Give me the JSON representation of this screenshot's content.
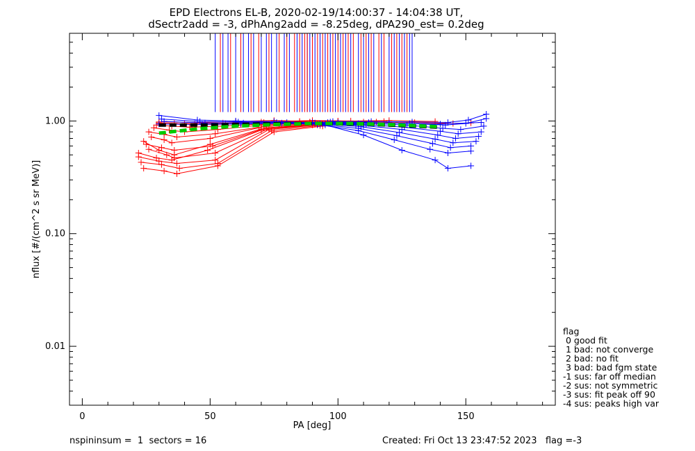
{
  "chart_data": {
    "type": "line",
    "title": "EPD Electrons EL-B, 2020-02-19/14:00:37 - 14:04:38 UT,",
    "subtitle": "dSectr2add = -3, dPhAng2add = -8.25deg, dPA290_est=   0.2deg",
    "xlabel": "PA [deg]",
    "ylabel": "nflux [#/(cm^2 s sr MeV)]",
    "xlim": [
      -5,
      185
    ],
    "ylim": [
      0.003,
      6
    ],
    "yscale": "log",
    "x_ticks": [
      "0",
      "50",
      "100",
      "150"
    ],
    "x_tick_values": [
      0,
      50,
      100,
      150
    ],
    "y_ticks": [
      "0.01",
      "0.10",
      "1.00"
    ],
    "y_tick_values": [
      0.01,
      0.1,
      1.0
    ],
    "grid": false,
    "legend_placement": "bottom-right",
    "series": [
      {
        "color": "#ff0000",
        "marker": "+",
        "note": "red traces (one sector direction)",
        "traces": [
          {
            "x": [
              22,
              30,
              37,
              52,
              73,
              92
            ],
            "y": [
              0.48,
              0.44,
              0.42,
              0.45,
              0.84,
              0.92
            ]
          },
          {
            "x": [
              23,
              31,
              38,
              53,
              74,
              93
            ],
            "y": [
              0.43,
              0.41,
              0.38,
              0.42,
              0.82,
              0.91
            ]
          },
          {
            "x": [
              24,
              32,
              37,
              53,
              75,
              94
            ],
            "y": [
              0.38,
              0.36,
              0.34,
              0.4,
              0.8,
              0.9
            ]
          },
          {
            "x": [
              26,
              33,
              36,
              52,
              73,
              92
            ],
            "y": [
              0.56,
              0.5,
              0.47,
              0.52,
              0.86,
              0.93
            ]
          },
          {
            "x": [
              25,
              31,
              36,
              51,
              72,
              91
            ],
            "y": [
              0.62,
              0.58,
              0.55,
              0.6,
              0.87,
              0.94
            ]
          },
          {
            "x": [
              27,
              32,
              35,
              50,
              71,
              90
            ],
            "y": [
              0.72,
              0.68,
              0.64,
              0.7,
              0.89,
              0.95
            ]
          },
          {
            "x": [
              26,
              32,
              37,
              52,
              72,
              91
            ],
            "y": [
              0.8,
              0.76,
              0.72,
              0.77,
              0.9,
              0.95
            ]
          },
          {
            "x": [
              28,
              34,
              40,
              53,
              70,
              90
            ],
            "y": [
              0.87,
              0.83,
              0.8,
              0.84,
              0.92,
              0.96
            ]
          },
          {
            "x": [
              29,
              35,
              42,
              55,
              70,
              89
            ],
            "y": [
              0.92,
              0.9,
              0.88,
              0.9,
              0.94,
              0.97
            ]
          },
          {
            "x": [
              30,
              36,
              44,
              56,
              71,
              89
            ],
            "y": [
              0.96,
              0.95,
              0.93,
              0.95,
              0.97,
              0.98
            ]
          },
          {
            "x": [
              24,
              30,
              36,
              50,
              70,
              90
            ],
            "y": [
              0.66,
              0.55,
              0.5,
              0.62,
              0.85,
              0.93
            ]
          },
          {
            "x": [
              22,
              29,
              35,
              49,
              70,
              90
            ],
            "y": [
              0.52,
              0.47,
              0.45,
              0.55,
              0.83,
              0.92
            ]
          },
          {
            "x": [
              30,
              45,
              60,
              75,
              90,
              110
            ],
            "y": [
              0.98,
              0.97,
              0.99,
              1.01,
              0.99,
              0.98
            ]
          },
          {
            "x": [
              40,
              55,
              70,
              85,
              100,
              118
            ],
            "y": [
              0.95,
              0.96,
              0.98,
              0.99,
              1.0,
              0.99
            ]
          },
          {
            "x": [
              60,
              75,
              90,
              105,
              120,
              138
            ],
            "y": [
              0.97,
              0.99,
              1.01,
              1.0,
              1.01,
              0.99
            ]
          },
          {
            "x": [
              85,
              100,
              115,
              130,
              145,
              152
            ],
            "y": [
              0.99,
              0.99,
              0.98,
              0.97,
              0.95,
              0.96
            ]
          }
        ]
      },
      {
        "color": "#0000ff",
        "marker": "+",
        "note": "blue traces (opposite sector direction)",
        "traces": [
          {
            "x": [
              30,
              45,
              60,
              75,
              90,
              108
            ],
            "y": [
              1.12,
              1.02,
              1.0,
              0.99,
              0.97,
              0.95
            ]
          },
          {
            "x": [
              31,
              46,
              61,
              76,
              91,
              109
            ],
            "y": [
              1.04,
              0.99,
              0.98,
              0.97,
              0.96,
              0.94
            ]
          },
          {
            "x": [
              32,
              48,
              63,
              78,
              93,
              110
            ],
            "y": [
              0.99,
              0.96,
              0.96,
              0.96,
              0.95,
              0.93
            ]
          },
          {
            "x": [
              30,
              47,
              62,
              77,
              92,
              107
            ],
            "y": [
              0.94,
              0.93,
              0.94,
              0.95,
              0.94,
              0.92
            ]
          },
          {
            "x": [
              95,
              110,
              125,
              138,
              143,
              152
            ],
            "y": [
              0.92,
              0.75,
              0.55,
              0.45,
              0.38,
              0.4
            ]
          },
          {
            "x": [
              92,
              108,
              122,
              136,
              143,
              152
            ],
            "y": [
              0.93,
              0.82,
              0.68,
              0.56,
              0.52,
              0.54
            ]
          },
          {
            "x": [
              93,
              108,
              123,
              137,
              144,
              152
            ],
            "y": [
              0.93,
              0.86,
              0.74,
              0.63,
              0.58,
              0.6
            ]
          },
          {
            "x": [
              94,
              109,
              124,
              138,
              145,
              154
            ],
            "y": [
              0.94,
              0.89,
              0.79,
              0.69,
              0.64,
              0.66
            ]
          },
          {
            "x": [
              95,
              110,
              125,
              139,
              146,
              155
            ],
            "y": [
              0.95,
              0.91,
              0.84,
              0.75,
              0.7,
              0.73
            ]
          },
          {
            "x": [
              96,
              111,
              126,
              140,
              147,
              156
            ],
            "y": [
              0.96,
              0.93,
              0.88,
              0.81,
              0.77,
              0.8
            ]
          },
          {
            "x": [
              96,
              112,
              127,
              141,
              148,
              157
            ],
            "y": [
              0.97,
              0.95,
              0.92,
              0.86,
              0.84,
              0.9
            ]
          },
          {
            "x": [
              97,
              112,
              128,
              142,
              150,
              158
            ],
            "y": [
              0.98,
              0.97,
              0.95,
              0.92,
              0.95,
              1.05
            ]
          },
          {
            "x": [
              98,
              113,
              129,
              143,
              151,
              158
            ],
            "y": [
              0.99,
              0.99,
              0.98,
              0.97,
              1.02,
              1.15
            ]
          },
          {
            "x": [
              60,
              80,
              100,
              120,
              140,
              156
            ],
            "y": [
              0.98,
              0.97,
              0.97,
              0.96,
              0.94,
              0.97
            ]
          }
        ]
      },
      {
        "color": "#000000",
        "style": "thick-dashed",
        "note": "median",
        "x": [
          30,
          50,
          70,
          90,
          110,
          130,
          140
        ],
        "y": [
          0.92,
          0.92,
          0.94,
          0.95,
          0.94,
          0.9,
          0.88
        ]
      },
      {
        "color": "#00cc00",
        "style": "thick-dashed",
        "note": "fit",
        "x": [
          30,
          45,
          60,
          75,
          90,
          105,
          120,
          135,
          140
        ],
        "y": [
          0.78,
          0.85,
          0.9,
          0.93,
          0.95,
          0.95,
          0.93,
          0.9,
          0.89
        ]
      }
    ],
    "vertical_markers": {
      "ymin": 1.2,
      "ymax": 6,
      "blue_x": [
        52,
        55,
        57,
        60,
        63,
        65,
        67,
        70,
        72,
        74,
        76,
        79,
        81,
        84,
        86,
        88,
        89,
        91,
        93,
        95,
        97,
        99,
        101,
        103,
        105,
        108,
        110,
        112,
        114,
        117,
        120,
        122,
        124,
        126,
        128,
        129
      ],
      "red_x": [
        54,
        58,
        62,
        66,
        69,
        73,
        77,
        80,
        83,
        85,
        87,
        88,
        90,
        92,
        94,
        96,
        98,
        100,
        102,
        104,
        106,
        109,
        111,
        113,
        116,
        118,
        121,
        123,
        125,
        127
      ]
    },
    "legend": {
      "header": "flag",
      "entries": [
        " 0 good fit",
        " 1 bad: not converge",
        " 2 bad: no fit",
        " 3 bad: bad fgm state",
        "-1 sus: far off median",
        "-2 sus: not symmetric",
        "-3 sus: fit peak off 90",
        "-4 sus: peaks high var"
      ]
    }
  },
  "footer": {
    "left": "nspininsum =  1  sectors = 16",
    "right": "Created: Fri Oct 13 23:47:52 2023   flag =-3"
  }
}
